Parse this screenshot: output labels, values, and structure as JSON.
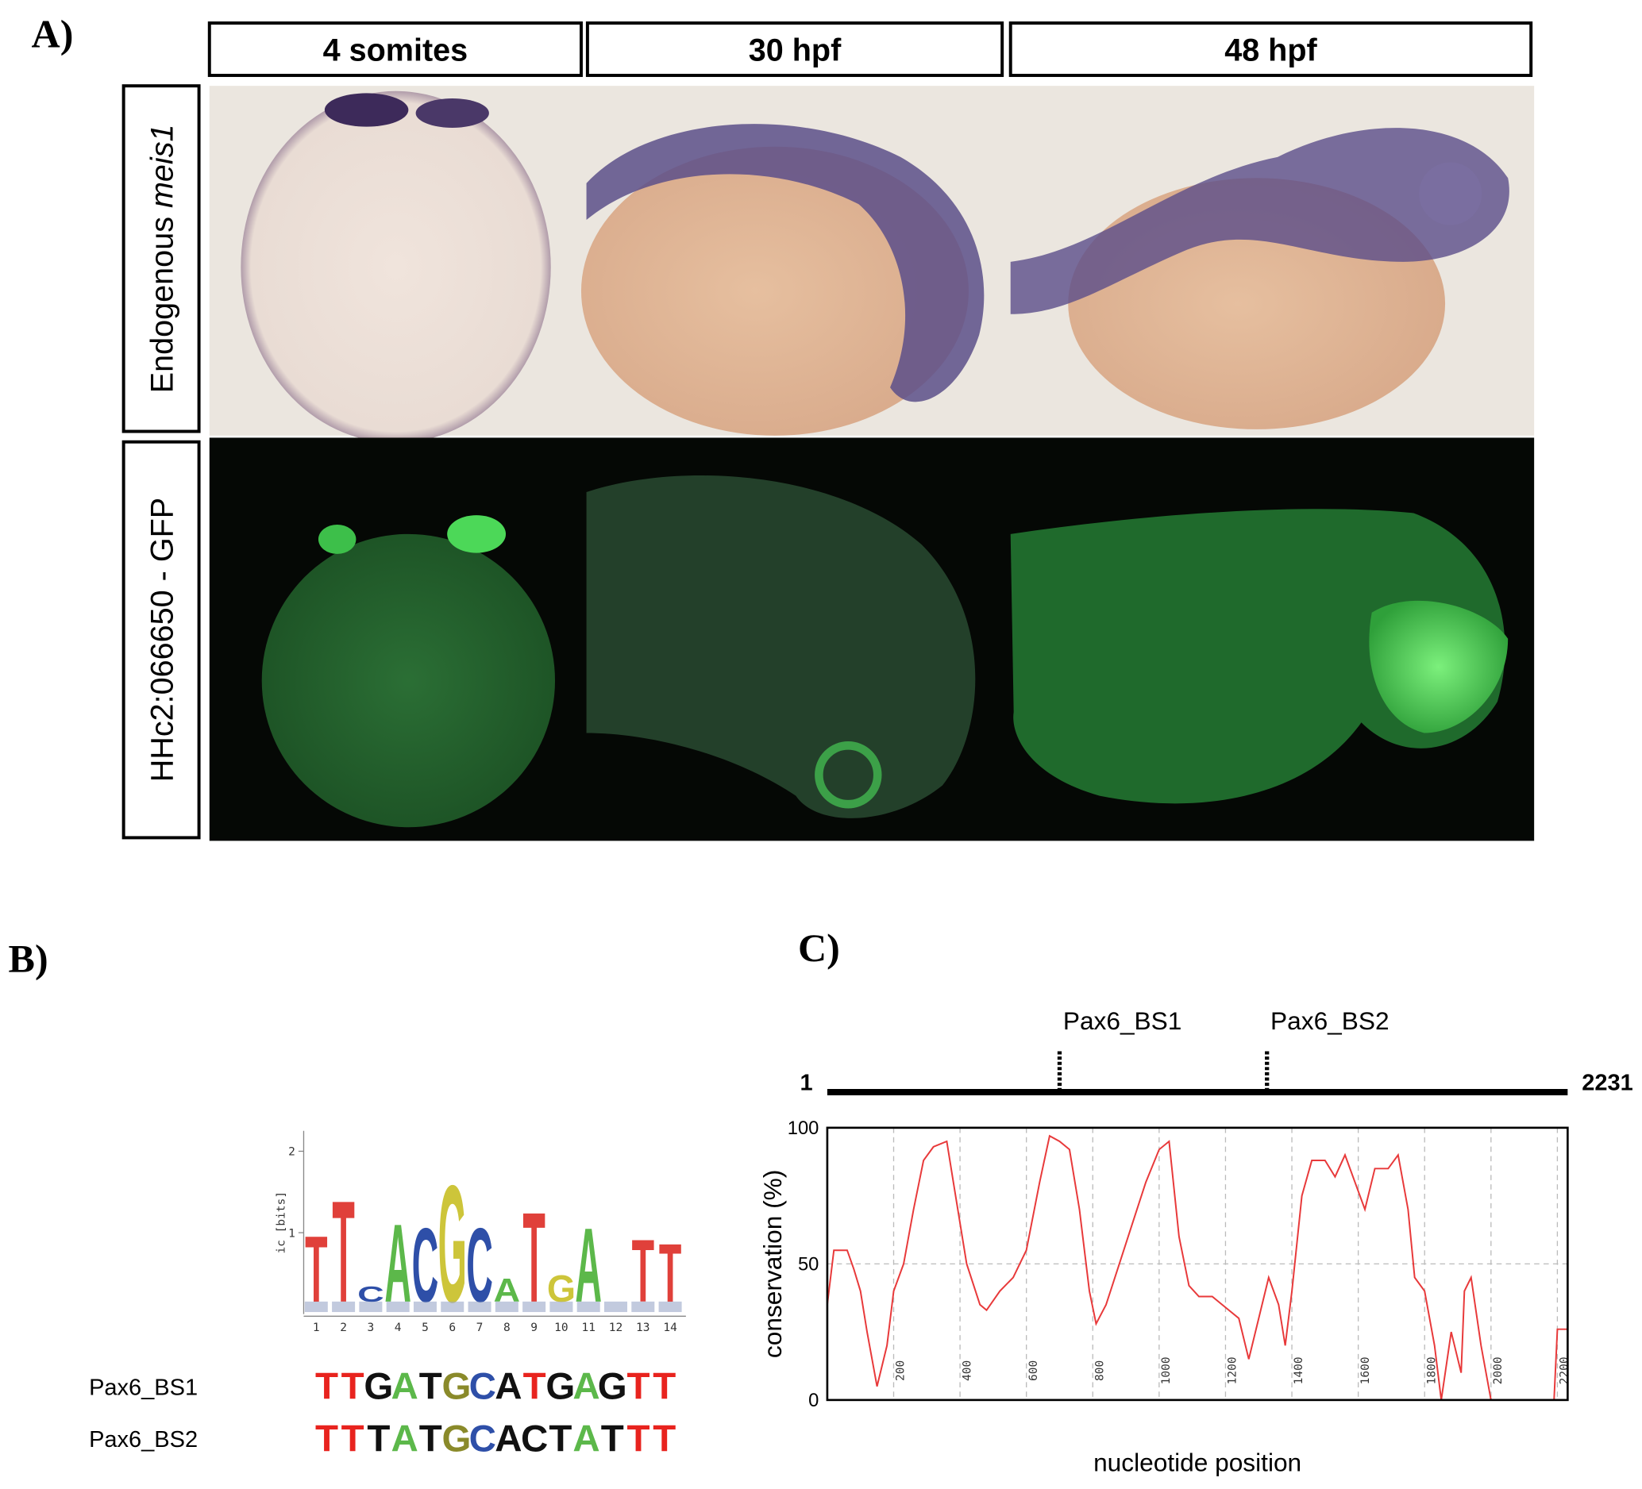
{
  "panels": {
    "a": {
      "label": "A)",
      "columns": [
        "4 somites",
        "30 hpf",
        "48 hpf"
      ],
      "rows": [
        {
          "parts": [
            "Endogenous ",
            "meis1"
          ]
        },
        {
          "parts": [
            "HHc2:066650 - GFP"
          ]
        }
      ]
    },
    "b": {
      "label": "B)",
      "logo": {
        "ylabel": "ic [bits]",
        "ylim": [
          0,
          2.25
        ],
        "yticks": [
          1,
          2
        ],
        "positions": [
          "1",
          "2",
          "3",
          "4",
          "5",
          "6",
          "7",
          "8",
          "9",
          "10",
          "11",
          "12",
          "13",
          "14"
        ],
        "letters": [
          "T",
          "T",
          "C",
          "A",
          "C",
          "G",
          "C",
          "A",
          "T",
          "G",
          "A",
          "",
          "T",
          "T"
        ],
        "heights": [
          1.0,
          1.45,
          0.35,
          1.15,
          1.1,
          1.65,
          1.1,
          0.45,
          1.3,
          0.5,
          1.1,
          0,
          0.95,
          0.9
        ],
        "colors": {
          "A": "#5cb84a",
          "C": "#2e4fa8",
          "G": "#cdc53a",
          "T": "#e0403a"
        }
      },
      "sequences": [
        {
          "name": "Pax6_BS1",
          "letters": [
            "T",
            "T",
            "G",
            "A",
            "T",
            "G",
            "C",
            "A",
            "T",
            "G",
            "A",
            "G",
            "T",
            "T"
          ],
          "colors": [
            "#e8231e",
            "#e8231e",
            "#111",
            "#5cb84a",
            "#111",
            "#8a8a2a",
            "#2e4fa8",
            "#111",
            "#e8231e",
            "#111",
            "#5cb84a",
            "#111",
            "#e8231e",
            "#e8231e"
          ]
        },
        {
          "name": "Pax6_BS2",
          "letters": [
            "T",
            "T",
            "T",
            "A",
            "T",
            "G",
            "C",
            "A",
            "C",
            "T",
            "A",
            "T",
            "T",
            "T"
          ],
          "colors": [
            "#e8231e",
            "#e8231e",
            "#111",
            "#5cb84a",
            "#111",
            "#8a8a2a",
            "#2e4fa8",
            "#111",
            "#111",
            "#111",
            "#5cb84a",
            "#111",
            "#e8231e",
            "#e8231e"
          ]
        }
      ]
    },
    "c": {
      "label": "C)",
      "map": {
        "start": "1",
        "end": "2231",
        "length": 2231,
        "sites": [
          {
            "name": "Pax6_BS1",
            "position": 700
          },
          {
            "name": "Pax6_BS2",
            "position": 1325
          }
        ]
      }
    }
  },
  "chart_data": {
    "type": "line",
    "xlabel": "nucleotide position",
    "ylabel": "conservation (%)",
    "color": "#e8393a",
    "xlim": [
      0,
      2231
    ],
    "ylim": [
      0,
      100
    ],
    "xticks": [
      200,
      400,
      600,
      800,
      1000,
      1200,
      1400,
      1600,
      1800,
      2000,
      2200
    ],
    "yticks": [
      0,
      50,
      100
    ],
    "grid": true,
    "x": [
      0,
      20,
      60,
      80,
      100,
      120,
      150,
      180,
      200,
      230,
      260,
      290,
      320,
      360,
      380,
      420,
      460,
      480,
      520,
      560,
      600,
      640,
      670,
      700,
      730,
      760,
      790,
      810,
      840,
      880,
      920,
      960,
      1000,
      1030,
      1060,
      1090,
      1120,
      1160,
      1200,
      1240,
      1270,
      1300,
      1330,
      1360,
      1380,
      1400,
      1430,
      1460,
      1500,
      1530,
      1560,
      1590,
      1620,
      1650,
      1690,
      1720,
      1750,
      1770,
      1800,
      1830,
      1850,
      1880,
      1910,
      1920,
      1940,
      1970,
      2000,
      2100,
      2190,
      2200,
      2231
    ],
    "values": [
      35,
      55,
      55,
      48,
      40,
      25,
      5,
      20,
      40,
      50,
      70,
      88,
      93,
      95,
      80,
      50,
      35,
      33,
      40,
      45,
      55,
      80,
      97,
      95,
      92,
      70,
      40,
      28,
      35,
      50,
      65,
      80,
      92,
      95,
      60,
      42,
      38,
      38,
      34,
      30,
      15,
      30,
      45,
      35,
      20,
      40,
      75,
      88,
      88,
      82,
      90,
      80,
      70,
      85,
      85,
      90,
      70,
      45,
      40,
      20,
      0,
      25,
      10,
      40,
      45,
      20,
      0,
      null,
      0,
      26,
      26
    ]
  }
}
